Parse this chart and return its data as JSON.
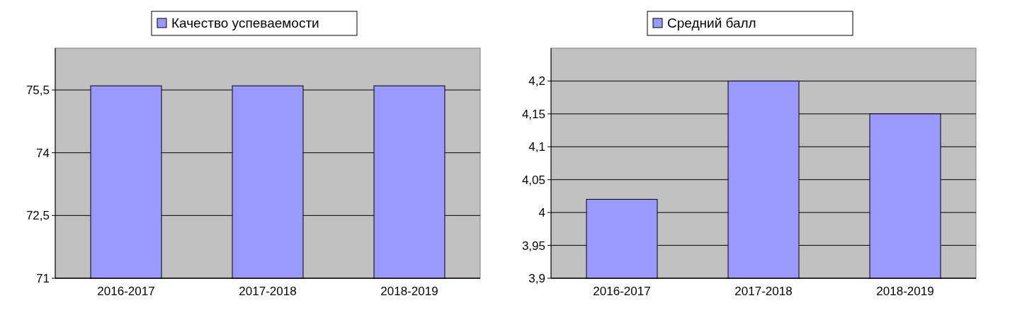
{
  "chart_data": [
    {
      "type": "bar",
      "categories": [
        "2016-2017",
        "2017-2018",
        "2018-2019"
      ],
      "series": [
        {
          "name": "Качество успеваемости",
          "color": "#9999ff",
          "values": [
            75.6,
            75.6,
            75.6
          ]
        }
      ],
      "ylim": [
        71,
        76.5
      ],
      "yticks": [
        71,
        {
          "value": 72.5,
          "label": "72,5"
        },
        74,
        {
          "value": 75.5,
          "label": "75,5"
        }
      ],
      "grid": "y",
      "legend": "top"
    },
    {
      "type": "bar",
      "categories": [
        "2016-2017",
        "2017-2018",
        "2018-2019"
      ],
      "series": [
        {
          "name": "Средний балл",
          "color": "#9999ff",
          "values": [
            4.02,
            4.2,
            4.15
          ]
        }
      ],
      "ylim": [
        3.9,
        4.25
      ],
      "yticks": [
        {
          "value": 3.9,
          "label": "3,9"
        },
        {
          "value": 3.95,
          "label": "3,95"
        },
        4,
        {
          "value": 4.05,
          "label": "4,05"
        },
        {
          "value": 4.1,
          "label": "4,1"
        },
        {
          "value": 4.15,
          "label": "4,15"
        },
        {
          "value": 4.2,
          "label": "4,2"
        }
      ],
      "grid": "y",
      "legend": "top"
    }
  ]
}
